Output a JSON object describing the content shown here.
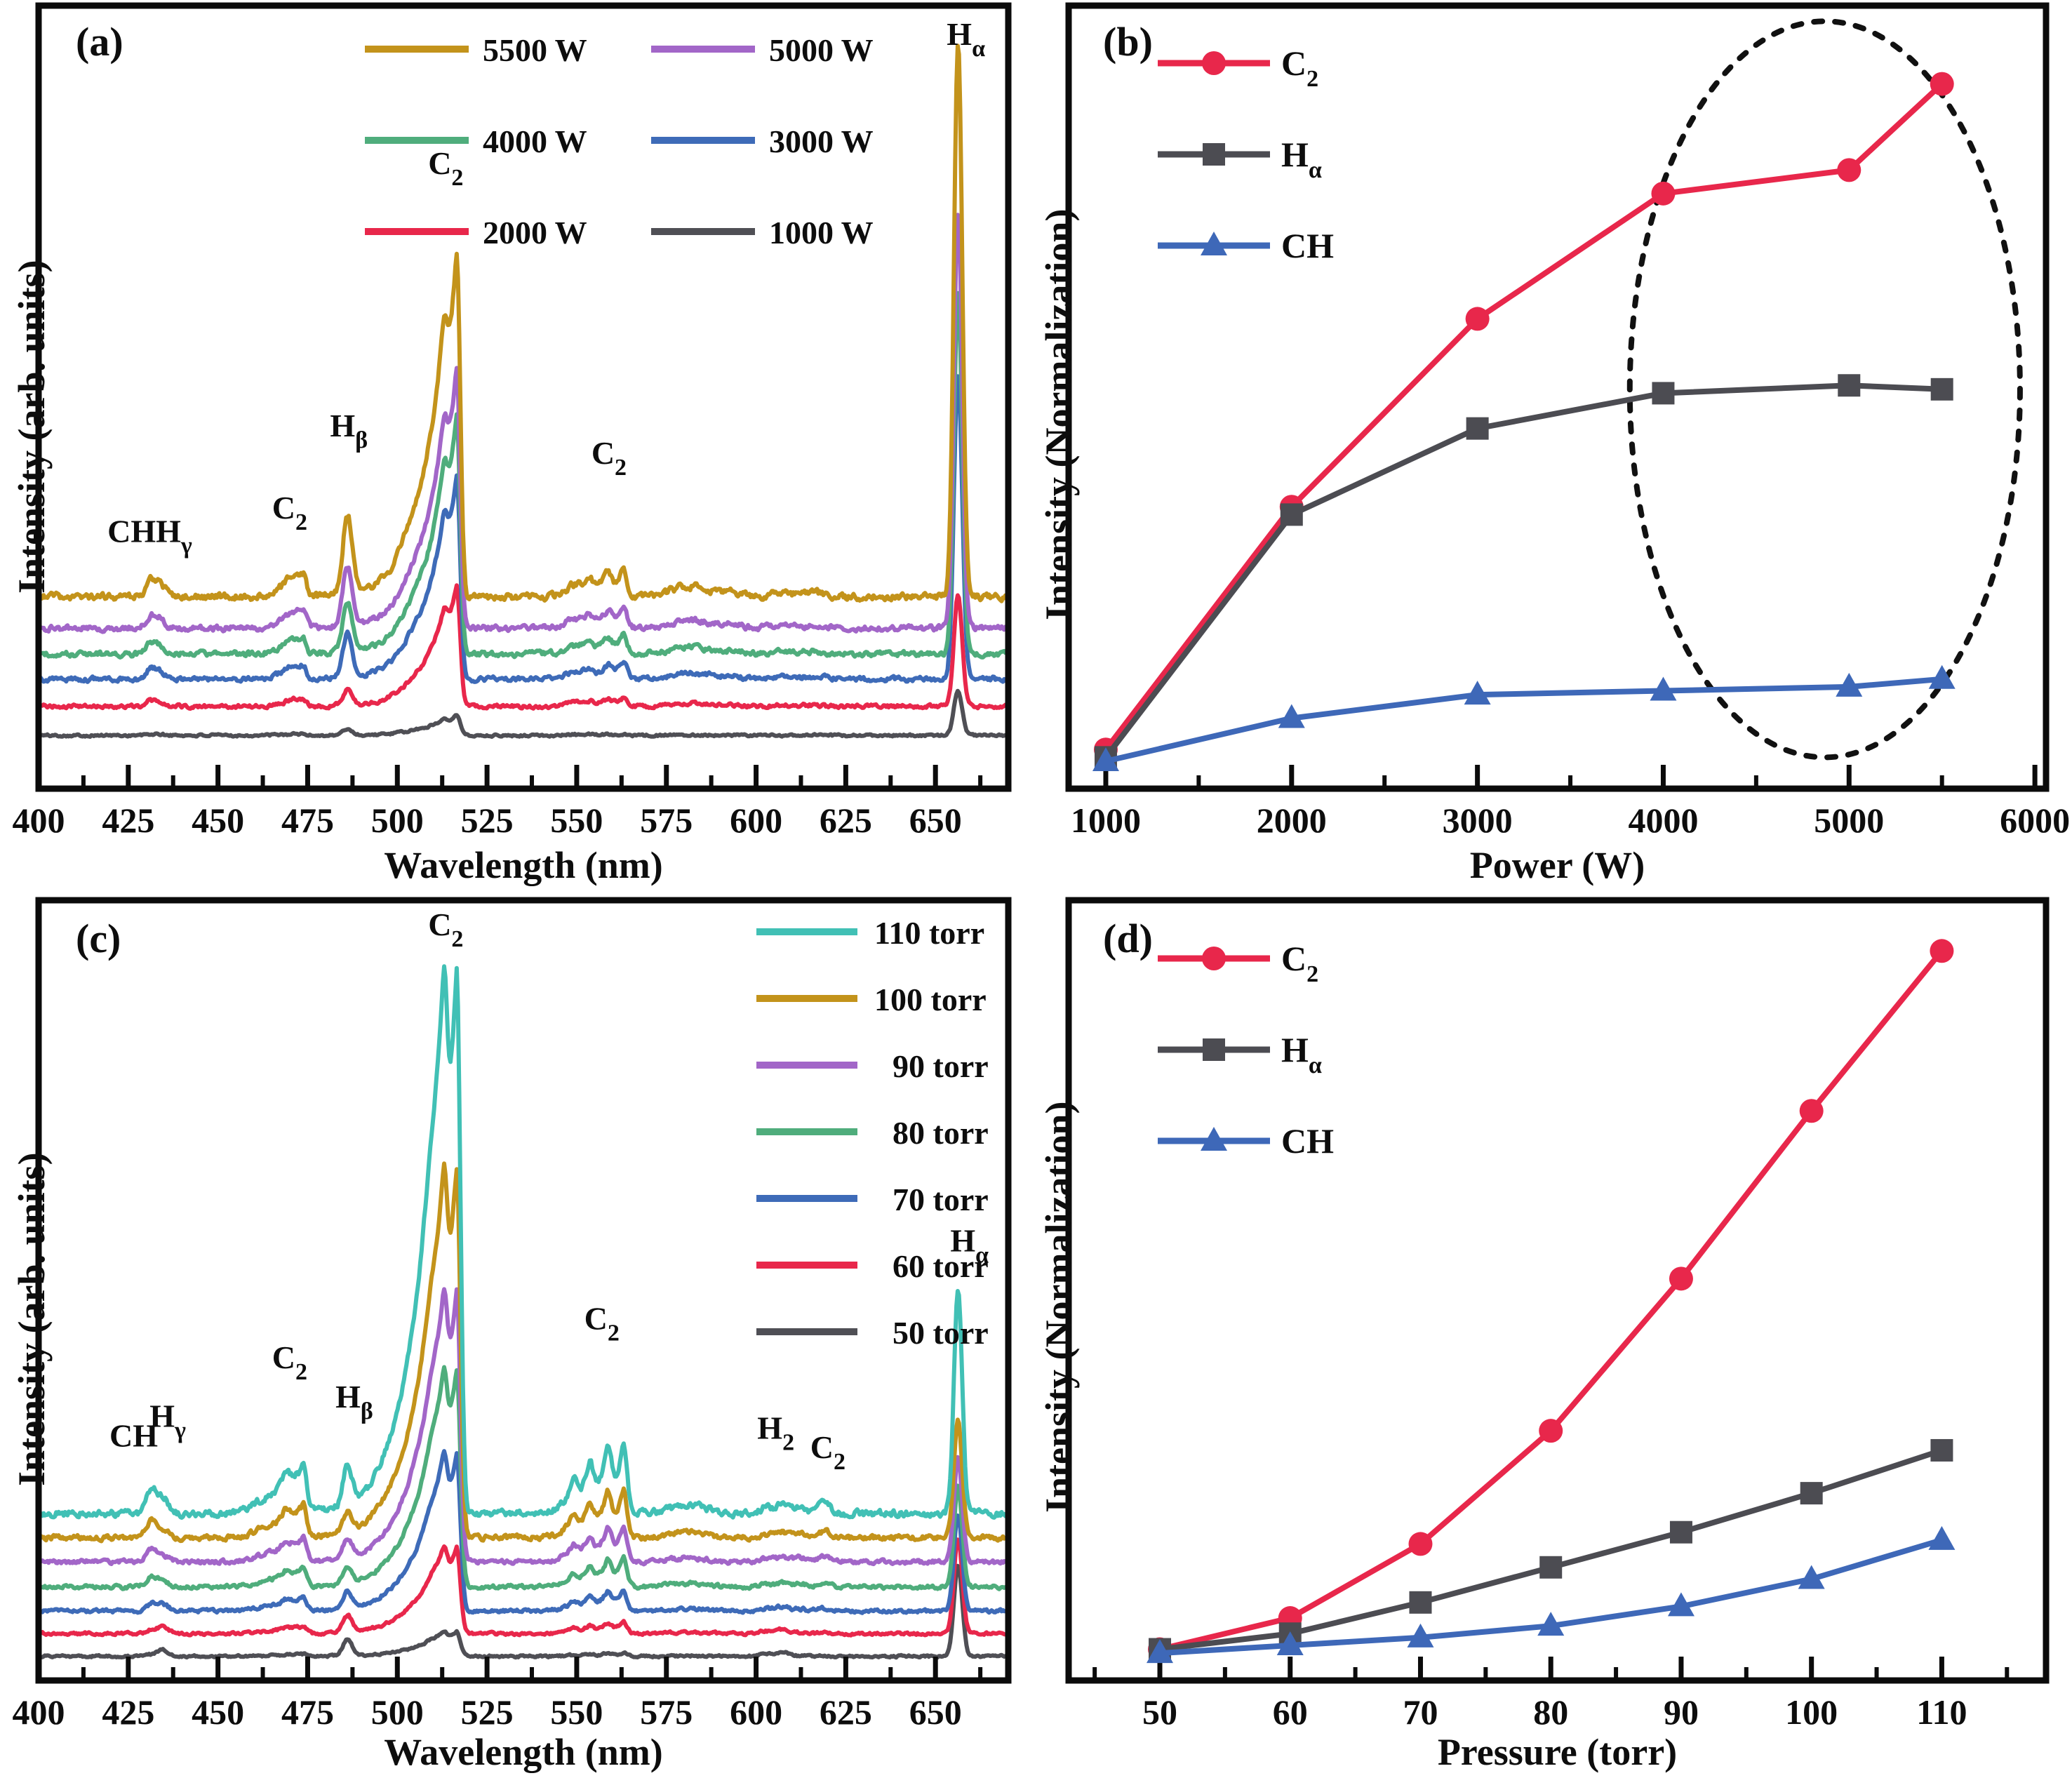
{
  "figure": {
    "description": "Four-panel optical emission spectroscopy figure",
    "panels": [
      {
        "letter": "(a)",
        "xlabel": "Wavelength (nm)",
        "ylabel": "Intensity (arb. units)"
      },
      {
        "letter": "(b)",
        "xlabel": "Power (W)",
        "ylabel": "Intensity (Normalization)"
      },
      {
        "letter": "(c)",
        "xlabel": "Wavelength (nm)",
        "ylabel": "Intensity (arb. units)"
      },
      {
        "letter": "(d)",
        "xlabel": "Pressure (torr)",
        "ylabel": "Intensity (Normalization)"
      }
    ]
  },
  "chart_data": [
    {
      "panel": "a",
      "type": "line",
      "title": "",
      "xlabel": "Wavelength (nm)",
      "ylabel": "Intensity (arb. units)",
      "xlim": [
        400,
        670.3
      ],
      "ylim": [
        0,
        1
      ],
      "grid": false,
      "xticks_major": [
        400,
        425,
        450,
        475,
        500,
        525,
        550,
        575,
        600,
        625,
        650
      ],
      "xticks_minor": [
        412.5,
        437.5,
        462.5,
        487.5,
        512.5,
        537.5,
        562.5,
        587.5,
        612.5,
        637.5,
        662.5
      ],
      "legend_position": "top-center-two-columns",
      "series": [
        {
          "label": "5500 W",
          "color": "#C3931B",
          "baseline": 0.245,
          "scale": 1.0,
          "hscale": 1.0
        },
        {
          "label": "5000 W",
          "color": "#A266C8",
          "baseline": 0.205,
          "scale": 0.76,
          "hscale": 0.75
        },
        {
          "label": "4000 W",
          "color": "#4FAD7C",
          "baseline": 0.172,
          "scale": 0.69,
          "hscale": 0.65
        },
        {
          "label": "3000 W",
          "color": "#3E6BB8",
          "baseline": 0.14,
          "scale": 0.6,
          "hscale": 0.55
        },
        {
          "label": "2000 W",
          "color": "#E8274B",
          "baseline": 0.105,
          "scale": 0.35,
          "hscale": 0.2
        },
        {
          "label": "1000 W",
          "color": "#4F4F55",
          "baseline": 0.068,
          "scale": 0.06,
          "hscale": 0.08
        }
      ],
      "peaks": [
        {
          "species": "CH",
          "center": 431.4,
          "type": "gauss",
          "width": 1.4,
          "amp": 0.022
        },
        {
          "species": "Hγ",
          "center": 434.2,
          "type": "gauss",
          "width": 1.3,
          "amp": 0.013,
          "h": true
        },
        {
          "species": "C2",
          "center": 468.5,
          "type": "gauss",
          "width": 2.8,
          "amp": 0.01
        },
        {
          "species": "C2",
          "center": 471.0,
          "type": "gauss",
          "width": 1.6,
          "amp": 0.013
        },
        {
          "species": "C2",
          "center": 473.7,
          "type": "band",
          "tail": 2.5,
          "width": 0.9,
          "amp": 0.026
        },
        {
          "species": "Hβ",
          "center": 486.1,
          "type": "gauss",
          "width": 1.3,
          "amp": 0.1,
          "h": true
        },
        {
          "species": "C2",
          "center": 505.0,
          "type": "gauss",
          "width": 4.0,
          "amp": 0.025
        },
        {
          "species": "C2",
          "center": 512.9,
          "type": "band",
          "tail": 5.0,
          "width": 0.9,
          "amp": 0.1
        },
        {
          "species": "C2",
          "center": 516.5,
          "type": "band",
          "tail": 6.5,
          "width": 1.0,
          "amp": 0.44
        },
        {
          "species": "C2",
          "center": 549.0,
          "type": "gauss",
          "width": 2.5,
          "amp": 0.01
        },
        {
          "species": "C2",
          "center": 553.5,
          "type": "band",
          "tail": 3.0,
          "width": 1.1,
          "amp": 0.016
        },
        {
          "species": "C2",
          "center": 558.5,
          "type": "band",
          "tail": 3.0,
          "width": 1.1,
          "amp": 0.024
        },
        {
          "species": "C2",
          "center": 563.0,
          "type": "band",
          "tail": 2.8,
          "width": 1.0,
          "amp": 0.036
        },
        {
          "species": "",
          "center": 581.0,
          "type": "gauss",
          "width": 5.0,
          "amp": 0.013
        },
        {
          "species": "",
          "center": 592.0,
          "type": "gauss",
          "width": 4.0,
          "amp": 0.005
        },
        {
          "species": "",
          "center": 607.0,
          "type": "gauss",
          "width": 3.0,
          "amp": 0.004
        },
        {
          "species": "",
          "center": 616.0,
          "type": "gauss",
          "width": 3.0,
          "amp": 0.005
        },
        {
          "species": "Hα",
          "center": 656.3,
          "type": "gauss",
          "width": 1.15,
          "amp": 0.71,
          "h": true
        }
      ],
      "annotations": [
        {
          "base": "CHH",
          "sub": "γ",
          "x": 431,
          "y": 0.315
        },
        {
          "base": "C",
          "sub": "2",
          "x": 470,
          "y": 0.345
        },
        {
          "base": "H",
          "sub": "β",
          "x": 486.5,
          "y": 0.45
        },
        {
          "base": "C",
          "sub": "2",
          "x": 513.5,
          "y": 0.785
        },
        {
          "base": "C",
          "sub": "2",
          "x": 559,
          "y": 0.415
        },
        {
          "base": "H",
          "sub": "α",
          "x": 658.5,
          "y": 0.95
        }
      ]
    },
    {
      "panel": "b",
      "type": "scatter-line",
      "title": "",
      "xlabel": "Power (W)",
      "ylabel": "Intensity (Normalization)",
      "xlim": [
        800,
        6060
      ],
      "ylim": [
        0,
        1
      ],
      "grid": false,
      "xticks_major": [
        1000,
        2000,
        3000,
        4000,
        5000,
        6000
      ],
      "xticks_minor": [
        1500,
        2500,
        3500,
        4500,
        5500
      ],
      "legend_position": "top-left",
      "x": [
        1000,
        2000,
        3000,
        4000,
        5000,
        5500
      ],
      "series": [
        {
          "base": "C",
          "sub": "2",
          "marker": "circle",
          "color": "#E8274B",
          "y": [
            0.05,
            0.36,
            0.6,
            0.76,
            0.79,
            0.9
          ]
        },
        {
          "base": "H",
          "sub": "α",
          "marker": "square",
          "color": "#4C4C52",
          "y": [
            0.04,
            0.35,
            0.46,
            0.505,
            0.515,
            0.51
          ]
        },
        {
          "base": "CH",
          "sub": "",
          "marker": "triangle",
          "color": "#3E68B8",
          "y": [
            0.035,
            0.09,
            0.12,
            0.125,
            0.13,
            0.14
          ]
        }
      ],
      "ellipse": {
        "cx": 4870,
        "cy": 0.51,
        "rx": 1050,
        "ry": 0.47,
        "style": "dotted"
      }
    },
    {
      "panel": "c",
      "type": "line",
      "title": "",
      "xlabel": "Wavelength (nm)",
      "ylabel": "Intensity (arb. units)",
      "xlim": [
        400,
        670.3
      ],
      "ylim": [
        0,
        1
      ],
      "grid": false,
      "xticks_major": [
        400,
        425,
        450,
        475,
        500,
        525,
        550,
        575,
        600,
        625,
        650
      ],
      "xticks_minor": [
        412.5,
        437.5,
        462.5,
        487.5,
        512.5,
        537.5,
        562.5,
        587.5,
        612.5,
        637.5,
        662.5
      ],
      "legend_position": "top-right-column",
      "series": [
        {
          "label": "110 torr",
          "color": "#41C0B5",
          "baseline": 0.214,
          "scale": 1.0,
          "hscale": 1.0
        },
        {
          "label": "100 torr",
          "color": "#C3931B",
          "baseline": 0.183,
          "scale": 0.68,
          "hscale": 0.52
        },
        {
          "label": "90 torr",
          "color": "#A266C8",
          "baseline": 0.152,
          "scale": 0.5,
          "hscale": 0.46
        },
        {
          "label": "80 torr",
          "color": "#4FAD7C",
          "baseline": 0.12,
          "scale": 0.4,
          "hscale": 0.44
        },
        {
          "label": "70 torr",
          "color": "#3E6BB8",
          "baseline": 0.089,
          "scale": 0.29,
          "hscale": 0.43
        },
        {
          "label": "60 torr",
          "color": "#E8274B",
          "baseline": 0.06,
          "scale": 0.16,
          "hscale": 0.42
        },
        {
          "label": "50 torr",
          "color": "#4F4F55",
          "baseline": 0.031,
          "scale": 0.045,
          "hscale": 0.4
        }
      ],
      "peaks": [
        {
          "species": "CH",
          "center": 431.4,
          "type": "gauss",
          "width": 1.4,
          "amp": 0.03
        },
        {
          "species": "Hγ",
          "center": 434.6,
          "type": "gauss",
          "width": 1.6,
          "amp": 0.02,
          "h": true
        },
        {
          "species": "C2",
          "center": 464.0,
          "type": "gauss",
          "width": 4.0,
          "amp": 0.015
        },
        {
          "species": "C2",
          "center": 468.5,
          "type": "band",
          "tail": 3.0,
          "width": 1.2,
          "amp": 0.028
        },
        {
          "species": "C2",
          "center": 471.0,
          "type": "gauss",
          "width": 1.7,
          "amp": 0.022
        },
        {
          "species": "C2",
          "center": 473.7,
          "type": "band",
          "tail": 2.6,
          "width": 0.95,
          "amp": 0.055
        },
        {
          "species": "Hβ",
          "center": 486.1,
          "type": "gauss",
          "width": 1.3,
          "amp": 0.052,
          "h": true
        },
        {
          "species": "C2",
          "center": 500.0,
          "type": "gauss",
          "width": 5.0,
          "amp": 0.035
        },
        {
          "species": "C2",
          "center": 505.5,
          "type": "gauss",
          "width": 3.0,
          "amp": 0.05
        },
        {
          "species": "C2",
          "center": 509.5,
          "type": "gauss",
          "width": 2.0,
          "amp": 0.07
        },
        {
          "species": "C2",
          "center": 512.9,
          "type": "band",
          "tail": 5.0,
          "width": 0.9,
          "amp": 0.26
        },
        {
          "species": "C2",
          "center": 516.5,
          "type": "band",
          "tail": 7.0,
          "width": 1.05,
          "amp": 0.7
        },
        {
          "species": "C2",
          "center": 549.0,
          "type": "band",
          "tail": 2.5,
          "width": 1.1,
          "amp": 0.03
        },
        {
          "species": "C2",
          "center": 553.5,
          "type": "band",
          "tail": 2.8,
          "width": 1.1,
          "amp": 0.05
        },
        {
          "species": "C2",
          "center": 558.5,
          "type": "band",
          "tail": 3.0,
          "width": 1.1,
          "amp": 0.07
        },
        {
          "species": "C2",
          "center": 563.0,
          "type": "band",
          "tail": 2.8,
          "width": 1.0,
          "amp": 0.09
        },
        {
          "species": "",
          "center": 581.0,
          "type": "gauss",
          "width": 5.0,
          "amp": 0.01
        },
        {
          "species": "H2",
          "center": 603.0,
          "type": "gauss",
          "width": 1.8,
          "amp": 0.008,
          "h": true
        },
        {
          "species": "H2",
          "center": 607.5,
          "type": "gauss",
          "width": 1.6,
          "amp": 0.013,
          "h": true
        },
        {
          "species": "",
          "center": 612.0,
          "type": "gauss",
          "width": 1.8,
          "amp": 0.01
        },
        {
          "species": "C2",
          "center": 619.0,
          "type": "gauss",
          "width": 1.8,
          "amp": 0.012
        },
        {
          "species": "Hα",
          "center": 656.3,
          "type": "gauss",
          "width": 1.15,
          "amp": 0.29,
          "h": true
        }
      ],
      "annotations": [
        {
          "base": "C",
          "sub": "2",
          "x": 513.5,
          "y": 0.955
        },
        {
          "base": "CH",
          "sub": "",
          "x": 426.5,
          "y": 0.3
        },
        {
          "base": "H",
          "sub": "γ",
          "x": 436,
          "y": 0.325
        },
        {
          "base": "C",
          "sub": "2",
          "x": 470,
          "y": 0.4
        },
        {
          "base": "H",
          "sub": "β",
          "x": 488,
          "y": 0.35
        },
        {
          "base": "C",
          "sub": "2",
          "x": 557,
          "y": 0.45
        },
        {
          "base": "H",
          "sub": "2",
          "x": 605.5,
          "y": 0.31
        },
        {
          "base": "C",
          "sub": "2",
          "x": 620,
          "y": 0.285
        },
        {
          "base": "H",
          "sub": "α",
          "x": 659.5,
          "y": 0.55
        }
      ]
    },
    {
      "panel": "d",
      "type": "scatter-line",
      "title": "",
      "xlabel": "Pressure (torr)",
      "ylabel": "Intensity (Normalization)",
      "xlim": [
        43,
        118
      ],
      "ylim": [
        0,
        1
      ],
      "grid": false,
      "xticks_major": [
        50,
        60,
        70,
        80,
        90,
        100,
        110
      ],
      "xticks_minor": [
        45,
        55,
        65,
        75,
        85,
        95,
        105,
        115
      ],
      "legend_position": "top-left",
      "x": [
        50,
        60,
        70,
        80,
        90,
        100,
        110
      ],
      "series": [
        {
          "base": "C",
          "sub": "2",
          "marker": "circle",
          "color": "#E8274B",
          "y": [
            0.04,
            0.08,
            0.175,
            0.32,
            0.515,
            0.73,
            0.935
          ]
        },
        {
          "base": "H",
          "sub": "α",
          "marker": "square",
          "color": "#4C4C52",
          "y": [
            0.04,
            0.06,
            0.1,
            0.145,
            0.19,
            0.24,
            0.295
          ]
        },
        {
          "base": "CH",
          "sub": "",
          "marker": "triangle",
          "color": "#3E68B8",
          "y": [
            0.035,
            0.045,
            0.055,
            0.07,
            0.095,
            0.13,
            0.18
          ]
        }
      ]
    }
  ]
}
